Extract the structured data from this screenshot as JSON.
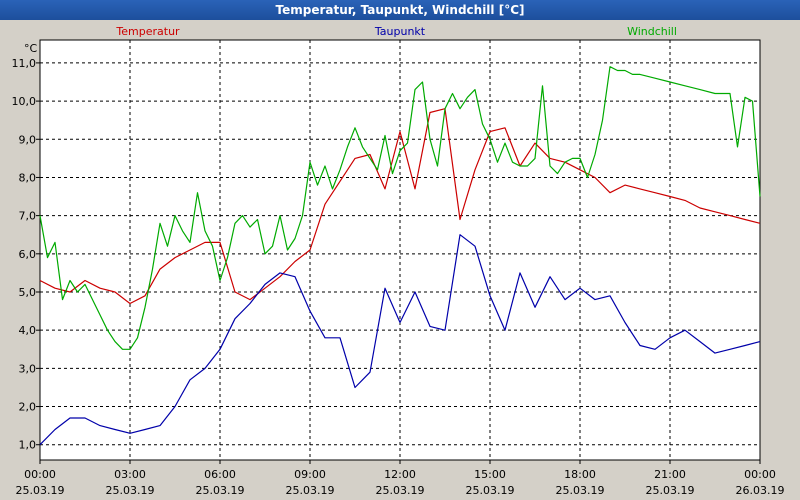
{
  "window": {
    "title": "Temperatur, Taupunkt, Windchill [°C]"
  },
  "chart_data": {
    "type": "line",
    "title": "Temperatur, Taupunkt, Windchill [°C]",
    "ylabel": "°C",
    "ylim": [
      0.6,
      11.6
    ],
    "xlim_hours": [
      0,
      24
    ],
    "grid": true,
    "legend_placement": "top",
    "x_ticks": [
      {
        "time": "00:00",
        "date": "25.03.19"
      },
      {
        "time": "03:00",
        "date": "25.03.19"
      },
      {
        "time": "06:00",
        "date": "25.03.19"
      },
      {
        "time": "09:00",
        "date": "25.03.19"
      },
      {
        "time": "12:00",
        "date": "25.03.19"
      },
      {
        "time": "15:00",
        "date": "25.03.19"
      },
      {
        "time": "18:00",
        "date": "25.03.19"
      },
      {
        "time": "21:00",
        "date": "25.03.19"
      },
      {
        "time": "00:00",
        "date": "26.03.19"
      }
    ],
    "y_ticks": [
      "1,0",
      "2,0",
      "3,0",
      "4,0",
      "5,0",
      "6,0",
      "7,0",
      "8,0",
      "9,0",
      "10,0",
      "11,0"
    ],
    "series": [
      {
        "name": "Temperatur",
        "color": "#cc0000",
        "x": [
          0,
          0.5,
          1,
          1.5,
          2,
          2.5,
          3,
          3.5,
          4,
          4.5,
          5,
          5.5,
          6,
          6.5,
          7,
          7.5,
          8,
          8.5,
          9,
          9.5,
          10,
          10.5,
          11,
          11.5,
          12,
          12.5,
          13,
          13.5,
          14,
          14.5,
          15,
          15.5,
          16,
          16.5,
          17,
          17.5,
          18,
          18.5,
          19,
          19.5,
          20,
          20.5,
          21,
          21.5,
          22,
          22.5,
          23,
          23.5,
          24
        ],
        "values": [
          5.3,
          5.1,
          5.0,
          5.3,
          5.1,
          5.0,
          4.7,
          4.9,
          5.6,
          5.9,
          6.1,
          6.3,
          6.3,
          5.0,
          4.8,
          5.1,
          5.4,
          5.8,
          6.1,
          7.3,
          7.9,
          8.5,
          8.6,
          7.7,
          9.2,
          7.7,
          9.7,
          9.8,
          6.9,
          8.2,
          9.2,
          9.3,
          8.3,
          8.9,
          8.5,
          8.4,
          8.2,
          8.0,
          7.6,
          7.8,
          7.7,
          7.6,
          7.5,
          7.4,
          7.2,
          7.1,
          7.0,
          6.9,
          6.8
        ]
      },
      {
        "name": "Taupunkt",
        "color": "#0000aa",
        "x": [
          0,
          0.5,
          1,
          1.5,
          2,
          2.5,
          3,
          3.5,
          4,
          4.5,
          5,
          5.5,
          6,
          6.5,
          7,
          7.5,
          8,
          8.5,
          9,
          9.5,
          10,
          10.5,
          11,
          11.5,
          12,
          12.5,
          13,
          13.5,
          14,
          14.5,
          15,
          15.5,
          16,
          16.5,
          17,
          17.5,
          18,
          18.5,
          19,
          19.5,
          20,
          20.5,
          21,
          21.5,
          22,
          22.5,
          23,
          23.5,
          24
        ],
        "values": [
          1.0,
          1.4,
          1.7,
          1.7,
          1.5,
          1.4,
          1.3,
          1.4,
          1.5,
          2.0,
          2.7,
          3.0,
          3.5,
          4.3,
          4.7,
          5.2,
          5.5,
          5.4,
          4.5,
          3.8,
          3.8,
          2.5,
          2.9,
          5.1,
          4.2,
          5.0,
          4.1,
          4.0,
          6.5,
          6.2,
          4.9,
          4.0,
          5.5,
          4.6,
          5.4,
          4.8,
          5.1,
          4.8,
          4.9,
          4.2,
          3.6,
          3.5,
          3.8,
          4.0,
          3.7,
          3.4,
          3.5,
          3.6,
          3.7
        ]
      },
      {
        "name": "Windchill",
        "color": "#00aa00",
        "x": [
          0,
          0.25,
          0.5,
          0.75,
          1,
          1.25,
          1.5,
          1.75,
          2,
          2.25,
          2.5,
          2.75,
          3,
          3.25,
          3.5,
          3.75,
          4,
          4.25,
          4.5,
          4.75,
          5,
          5.25,
          5.5,
          5.75,
          6,
          6.25,
          6.5,
          6.75,
          7,
          7.25,
          7.5,
          7.75,
          8,
          8.25,
          8.5,
          8.75,
          9,
          9.25,
          9.5,
          9.75,
          10,
          10.25,
          10.5,
          10.75,
          11,
          11.25,
          11.5,
          11.75,
          12,
          12.25,
          12.5,
          12.75,
          13,
          13.25,
          13.5,
          13.75,
          14,
          14.25,
          14.5,
          14.75,
          15,
          15.25,
          15.5,
          15.75,
          16,
          16.25,
          16.5,
          16.75,
          17,
          17.25,
          17.5,
          17.75,
          18,
          18.25,
          18.5,
          18.75,
          19,
          19.25,
          19.5,
          19.75,
          20,
          20.5,
          21,
          21.5,
          22,
          22.5,
          23,
          23.25,
          23.5,
          23.75,
          24
        ],
        "values": [
          7.0,
          5.9,
          6.3,
          4.8,
          5.3,
          5.0,
          5.2,
          4.8,
          4.4,
          4.0,
          3.7,
          3.5,
          3.5,
          3.8,
          4.6,
          5.6,
          6.8,
          6.2,
          7.0,
          6.6,
          6.3,
          7.6,
          6.6,
          6.2,
          5.3,
          5.9,
          6.8,
          7.0,
          6.7,
          6.9,
          6.0,
          6.2,
          7.0,
          6.1,
          6.4,
          7.0,
          8.4,
          7.8,
          8.3,
          7.7,
          8.2,
          8.8,
          9.3,
          8.8,
          8.5,
          8.2,
          9.1,
          8.1,
          8.7,
          8.9,
          10.3,
          10.5,
          9.0,
          8.3,
          9.8,
          10.2,
          9.8,
          10.1,
          10.3,
          9.4,
          9.0,
          8.4,
          8.9,
          8.4,
          8.3,
          8.3,
          8.5,
          10.4,
          8.3,
          8.1,
          8.4,
          8.5,
          8.5,
          8.0,
          8.6,
          9.5,
          10.9,
          10.8,
          10.8,
          10.7,
          10.7,
          10.6,
          10.5,
          10.4,
          10.3,
          10.2,
          10.2,
          8.8,
          10.1,
          10.0,
          7.5
        ]
      }
    ]
  }
}
